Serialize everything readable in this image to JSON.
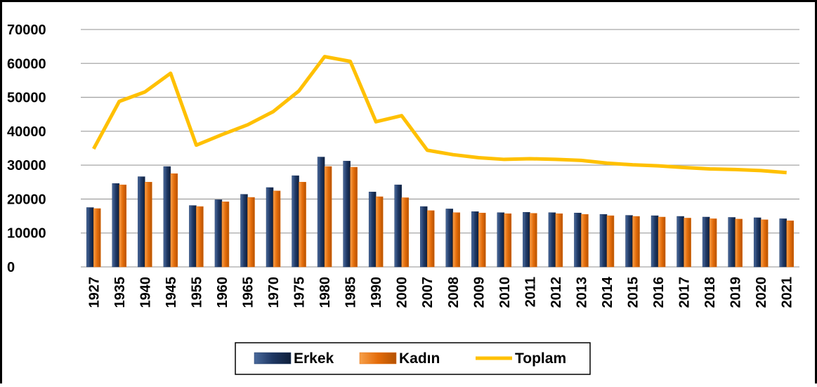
{
  "chart_data": {
    "type": "bar",
    "categories": [
      "1927",
      "1935",
      "1940",
      "1945",
      "1955",
      "1960",
      "1965",
      "1970",
      "1975",
      "1980",
      "1985",
      "1990",
      "2000",
      "2007",
      "2008",
      "2009",
      "2010",
      "2011",
      "2012",
      "2013",
      "2014",
      "2015",
      "2016",
      "2017",
      "2018",
      "2019",
      "2020",
      "2021"
    ],
    "series": [
      {
        "name": "Erkek",
        "color": "#1f3864",
        "type": "bar",
        "values": [
          17500,
          24600,
          26600,
          29600,
          18100,
          19800,
          21400,
          23400,
          26900,
          32400,
          31200,
          22100,
          24200,
          17800,
          17100,
          16300,
          16000,
          16100,
          16000,
          15900,
          15500,
          15200,
          15100,
          14900,
          14700,
          14600,
          14500,
          14200
        ]
      },
      {
        "name": "Kadın",
        "color": "#e46c0a",
        "type": "bar",
        "values": [
          17200,
          24200,
          25000,
          27500,
          17800,
          19200,
          20500,
          22400,
          25000,
          29600,
          29400,
          20700,
          20400,
          16600,
          16000,
          15900,
          15700,
          15800,
          15700,
          15500,
          15100,
          14900,
          14700,
          14400,
          14200,
          14100,
          13900,
          13600
        ]
      },
      {
        "name": "Toplam",
        "color": "#ffc000",
        "type": "line",
        "values": [
          34800,
          48800,
          51600,
          57100,
          35900,
          39000,
          41900,
          45800,
          51900,
          62000,
          60600,
          42800,
          44600,
          34400,
          33100,
          32200,
          31700,
          31900,
          31700,
          31400,
          30600,
          30100,
          29800,
          29300,
          28900,
          28700,
          28400,
          27800
        ]
      }
    ],
    "ylim": [
      0,
      70000
    ],
    "yticks": [
      0,
      10000,
      20000,
      30000,
      40000,
      50000,
      60000,
      70000
    ],
    "grid": true,
    "legend": "bottom"
  }
}
